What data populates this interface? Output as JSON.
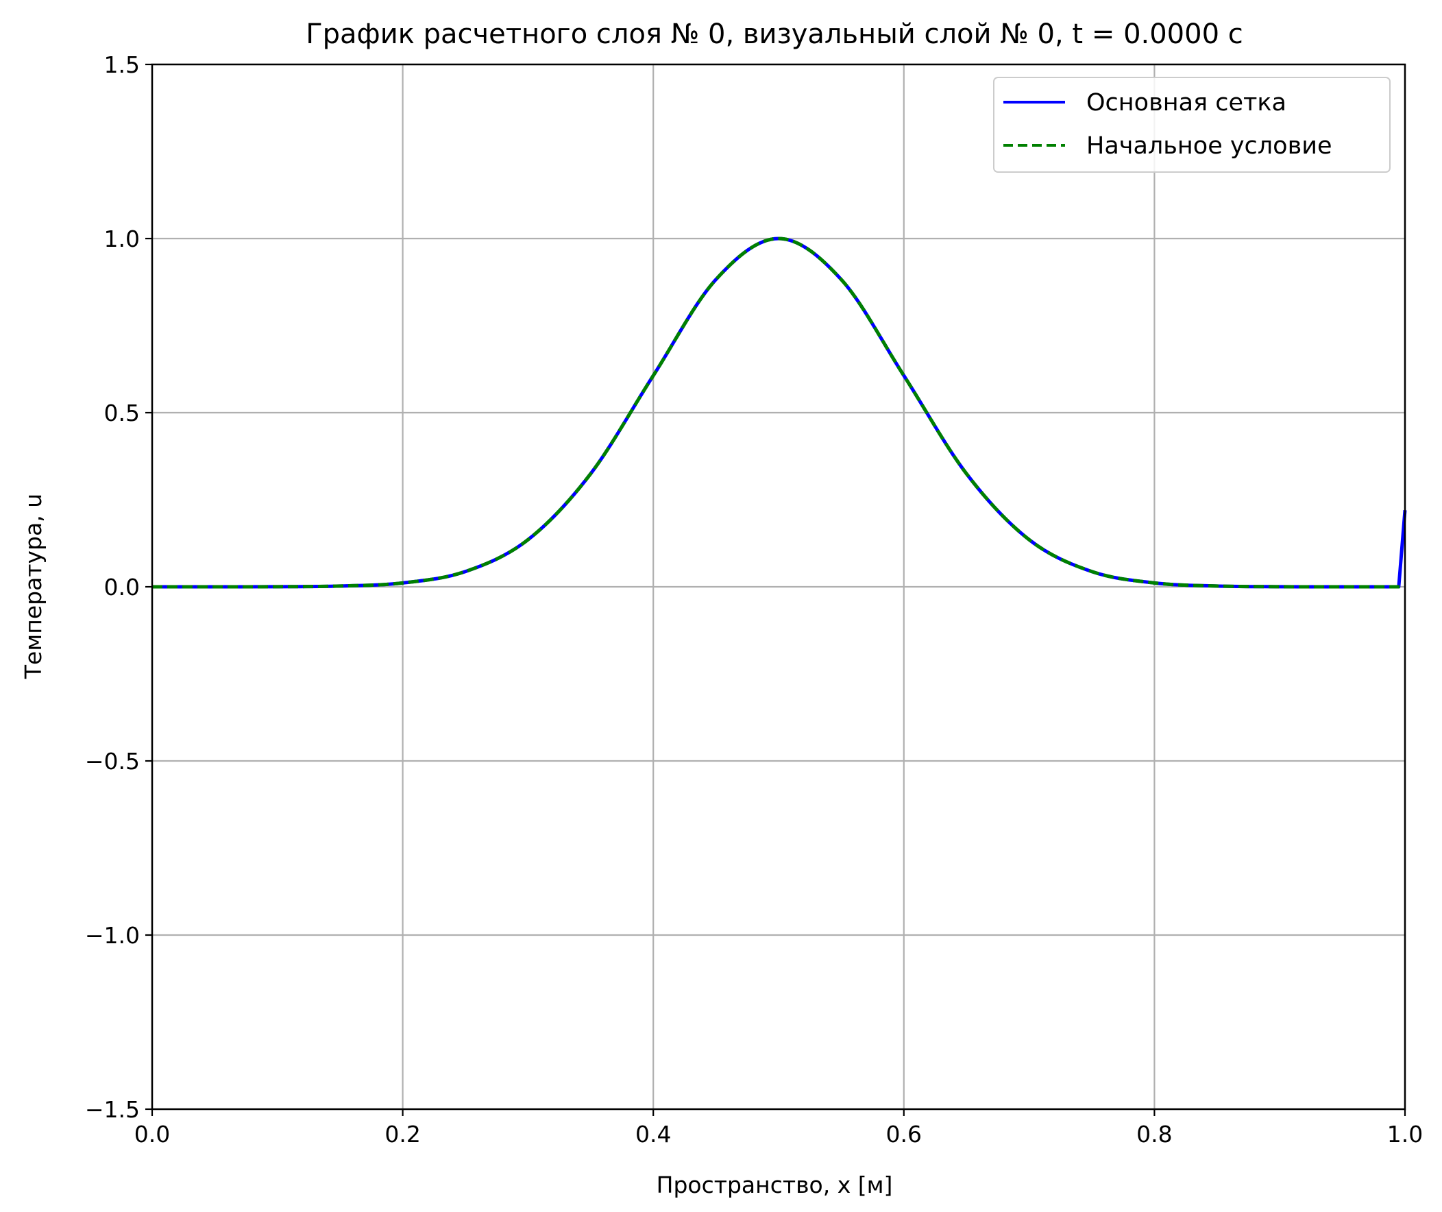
{
  "chart_data": {
    "type": "line",
    "title": "График расчетного слоя № 0, визуальный слой № 0, t = 0.0000 с",
    "xlabel": "Пространство, x [м]",
    "ylabel": "Температура, u",
    "xlim": [
      0.0,
      1.0
    ],
    "ylim": [
      -1.5,
      1.5
    ],
    "x_ticks": [
      0.0,
      0.2,
      0.4,
      0.6,
      0.8,
      1.0
    ],
    "x_tick_labels": [
      "0.0",
      "0.2",
      "0.4",
      "0.6",
      "0.8",
      "1.0"
    ],
    "y_ticks": [
      1.5,
      1.0,
      0.5,
      0.0,
      -0.5,
      -1.0,
      -1.5
    ],
    "y_tick_labels": [
      "1.5",
      "1.0",
      "0.5",
      "0.0",
      "−0.5",
      "−1.0",
      "−1.5"
    ],
    "grid": true,
    "legend_position": "top-right",
    "series": [
      {
        "name": "Основная сетка",
        "color": "#0000ff",
        "style": "solid",
        "x": [
          0.0,
          0.05,
          0.1,
          0.15,
          0.2,
          0.25,
          0.3,
          0.35,
          0.4,
          0.45,
          0.5,
          0.55,
          0.6,
          0.65,
          0.7,
          0.75,
          0.8,
          0.85,
          0.9,
          0.95,
          0.995,
          1.0
        ],
        "y": [
          0.0,
          0.0,
          0.0003,
          0.0022,
          0.0111,
          0.0439,
          0.1353,
          0.3247,
          0.6065,
          0.8825,
          1.0,
          0.8825,
          0.6065,
          0.3247,
          0.1353,
          0.0439,
          0.0111,
          0.0022,
          0.0003,
          0.0,
          0.0,
          0.22
        ]
      },
      {
        "name": "Начальное условие",
        "color": "#008000",
        "style": "dashed",
        "x": [
          0.0,
          0.05,
          0.1,
          0.15,
          0.2,
          0.25,
          0.3,
          0.35,
          0.4,
          0.45,
          0.5,
          0.55,
          0.6,
          0.65,
          0.7,
          0.75,
          0.8,
          0.85,
          0.9,
          0.95,
          1.0
        ],
        "y": [
          0.0,
          0.0,
          0.0003,
          0.0022,
          0.0111,
          0.0439,
          0.1353,
          0.3247,
          0.6065,
          0.8825,
          1.0,
          0.8825,
          0.6065,
          0.3247,
          0.1353,
          0.0439,
          0.0111,
          0.0022,
          0.0003,
          0.0,
          0.0
        ]
      }
    ]
  }
}
